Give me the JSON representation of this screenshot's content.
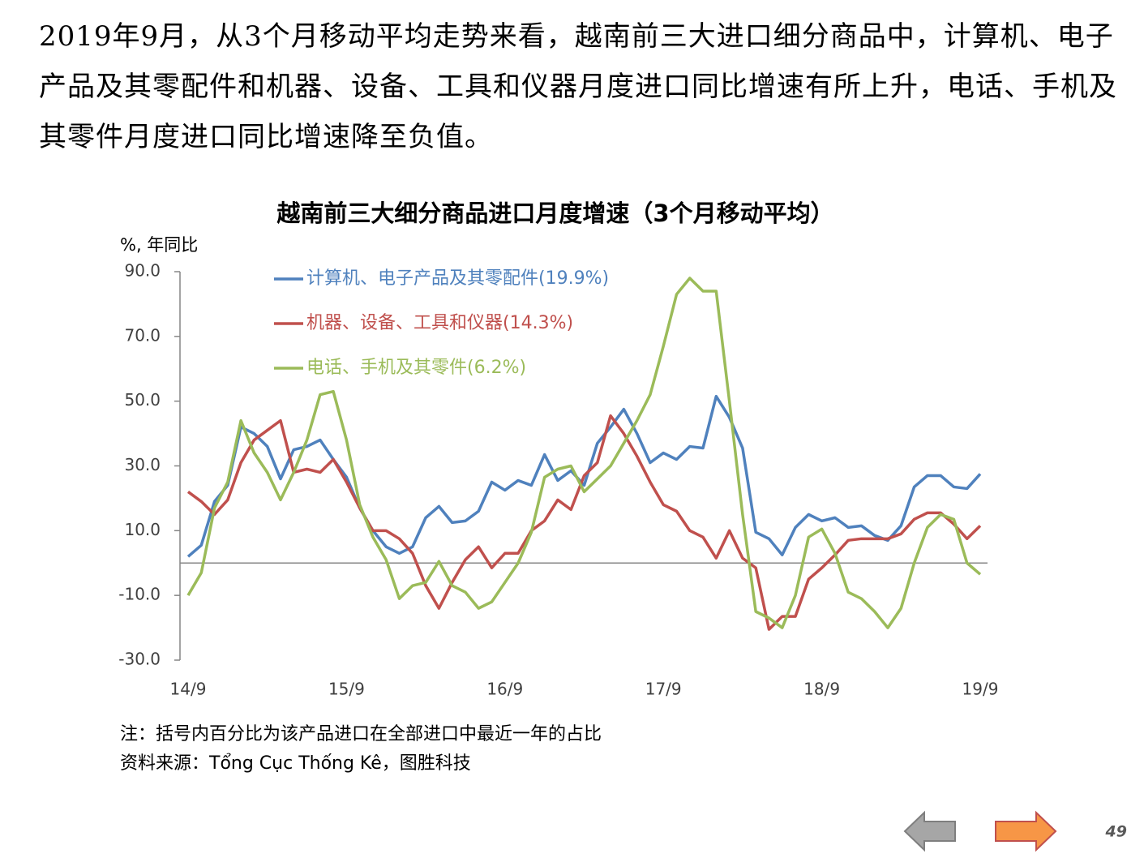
{
  "slide": {
    "paragraph": "2019年9月，从3个月移动平均走势来看，越南前三大进口细分商品中，计算机、电子产品及其零配件和机器、设备、工具和仪器月度进口同比增速有所上升，电话、手机及其零件月度进口同比增速降至负值。",
    "page_number": "49"
  },
  "chart_data": {
    "type": "line",
    "title": "越南前三大细分商品进口月度增速（3个月移动平均）",
    "y_label": "%, 年同比",
    "notes": [
      "注：括号内百分比为该产品进口在全部进口中最近一年的占比",
      "资料来源：Tổng Cục Thống Kê，图胜科技"
    ],
    "categories": [
      "14/9",
      null,
      null,
      null,
      null,
      null,
      null,
      null,
      null,
      null,
      null,
      null,
      "15/9",
      null,
      null,
      null,
      null,
      null,
      null,
      null,
      null,
      null,
      null,
      null,
      "16/9",
      null,
      null,
      null,
      null,
      null,
      null,
      null,
      null,
      null,
      null,
      null,
      "17/9",
      null,
      null,
      null,
      null,
      null,
      null,
      null,
      null,
      null,
      null,
      null,
      "18/9",
      null,
      null,
      null,
      null,
      null,
      null,
      null,
      null,
      null,
      null,
      null,
      "19/9"
    ],
    "ylim": [
      -30,
      90
    ],
    "yticks": [
      {
        "value": -30,
        "label": "-30.0"
      },
      {
        "value": -10,
        "label": "-10.0"
      },
      {
        "value": 10,
        "label": "10.0"
      },
      {
        "value": 30,
        "label": "30.0"
      },
      {
        "value": 50,
        "label": "50.0"
      },
      {
        "value": 70,
        "label": "70.0"
      },
      {
        "value": 90,
        "label": "90.0"
      }
    ],
    "series": [
      {
        "name": "计算机、电子产品及其零配件(19.9%)",
        "color": "#4f81bd",
        "values": [
          2,
          5.5,
          19,
          24,
          42,
          40,
          36,
          26,
          35,
          36,
          38,
          32,
          26.5,
          17,
          10,
          5,
          3,
          5,
          14,
          17.5,
          12.5,
          13,
          16,
          25,
          22.5,
          25.5,
          24,
          33.5,
          25.5,
          28.5,
          24,
          37,
          42,
          47.5,
          40,
          31,
          34,
          32,
          36,
          35.5,
          51.5,
          45,
          35.5,
          9.5,
          7.5,
          2.5,
          11,
          15,
          13,
          14,
          11,
          11.5,
          8.5,
          7,
          11.5,
          23.5,
          27,
          27,
          23.5,
          23,
          27.5
        ]
      },
      {
        "name": "机器、设备、工具和仪器(14.3%)",
        "color": "#c0504d",
        "values": [
          22,
          19,
          15,
          19.5,
          31,
          38,
          41,
          44,
          28,
          29,
          28,
          32,
          25,
          17,
          10,
          10,
          7.5,
          3,
          -7,
          -14,
          -6,
          1,
          5,
          -1.5,
          3,
          3,
          10,
          13,
          19.5,
          16.5,
          27,
          31,
          45.5,
          40,
          33,
          25,
          18,
          16,
          10,
          8,
          1.5,
          10,
          1.5,
          -1.5,
          -20.5,
          -16.5,
          -16.5,
          -5,
          -1.5,
          2.5,
          7,
          7.5,
          7.5,
          7.5,
          9,
          13.5,
          15.5,
          15.5,
          12,
          7.5,
          11.5
        ]
      },
      {
        "name": "电话、手机及其零件(6.2%)",
        "color": "#9bbb59",
        "values": [
          -10,
          -3,
          17,
          25,
          44,
          34,
          28,
          19.5,
          28,
          38,
          52,
          53,
          38,
          18,
          8,
          1,
          -11,
          -7,
          -6,
          0.5,
          -7,
          -9,
          -14,
          -12,
          -6,
          0,
          9.5,
          26.5,
          29,
          30,
          22,
          26,
          30,
          37,
          44,
          52,
          67,
          83,
          88,
          84,
          84,
          50,
          15,
          -15,
          -17,
          -20,
          -10,
          8,
          10.5,
          3,
          -9,
          -11,
          -15,
          -20,
          -14,
          0,
          11,
          15,
          13.5,
          0,
          -3.5
        ]
      }
    ]
  }
}
